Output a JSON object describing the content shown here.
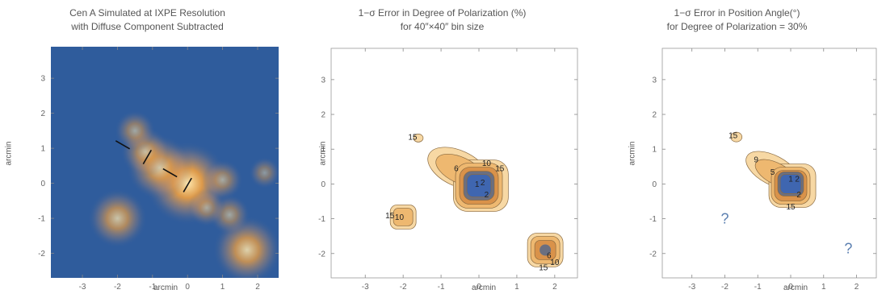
{
  "chart_data": [
    {
      "type": "heatmap",
      "title": "Cen A Simulated at IXPE Resolution",
      "subtitle": "with Diffuse Component Subtracted",
      "xlabel": "arcmin",
      "ylabel": "arcmin",
      "xlim": [
        -3.9,
        2.6
      ],
      "ylim": [
        -2.7,
        3.9
      ],
      "xticks": [
        -3,
        -2,
        -1,
        0,
        1,
        2
      ],
      "yticks": [
        -2,
        -1,
        0,
        1,
        2,
        3
      ],
      "colors": {
        "background": "#2f5c9c",
        "hot": "#ffe9b0",
        "warm": "#f0a040"
      },
      "sources": [
        {
          "x": 0.0,
          "y": 0.0,
          "intensity": 1.0
        },
        {
          "x": -0.8,
          "y": 0.45,
          "intensity": 0.7
        },
        {
          "x": -1.2,
          "y": 0.9,
          "intensity": 0.45
        },
        {
          "x": -1.5,
          "y": 1.5,
          "intensity": 0.3
        },
        {
          "x": -2.0,
          "y": -1.0,
          "intensity": 0.6
        },
        {
          "x": 1.7,
          "y": -1.9,
          "intensity": 0.75
        },
        {
          "x": 1.2,
          "y": -0.9,
          "intensity": 0.3
        },
        {
          "x": 1.0,
          "y": 0.1,
          "intensity": 0.3
        },
        {
          "x": 0.55,
          "y": -0.7,
          "intensity": 0.25
        },
        {
          "x": 2.2,
          "y": 0.3,
          "intensity": 0.15
        }
      ],
      "polarization_vectors": [
        {
          "x": -1.85,
          "y": 1.1,
          "angle_deg": 150
        },
        {
          "x": -1.15,
          "y": 0.75,
          "angle_deg": 60
        },
        {
          "x": -0.5,
          "y": 0.3,
          "angle_deg": 150
        },
        {
          "x": 0.0,
          "y": -0.05,
          "angle_deg": 60
        }
      ]
    },
    {
      "type": "contour",
      "title": "1−σ Error in Degree of Polarization (%)",
      "subtitle": "for 40″×40″ bin size",
      "xlabel": "arcmin",
      "ylabel": "arcmin",
      "xlim": [
        -3.9,
        2.6
      ],
      "ylim": [
        -2.7,
        3.9
      ],
      "xticks": [
        -3,
        -2,
        -1,
        0,
        1,
        2
      ],
      "yticks": [
        -2,
        -1,
        0,
        1,
        2,
        3
      ],
      "contour_levels": [
        1,
        2,
        6,
        10,
        15
      ],
      "labels": [
        {
          "text": "15",
          "x": -1.75,
          "y": 1.35
        },
        {
          "text": "6",
          "x": -0.6,
          "y": 0.45
        },
        {
          "text": "10",
          "x": 0.2,
          "y": 0.6
        },
        {
          "text": "15",
          "x": 0.55,
          "y": 0.45
        },
        {
          "text": "1",
          "x": -0.05,
          "y": 0.0
        },
        {
          "text": "2",
          "x": 0.1,
          "y": 0.05
        },
        {
          "text": "2",
          "x": 0.2,
          "y": -0.3
        },
        {
          "text": "15",
          "x": -2.35,
          "y": -0.9
        },
        {
          "text": "10",
          "x": -2.1,
          "y": -0.95
        },
        {
          "text": "6",
          "x": 1.85,
          "y": -2.05
        },
        {
          "text": "10",
          "x": 2.0,
          "y": -2.25
        },
        {
          "text": "15",
          "x": 1.7,
          "y": -2.4
        }
      ]
    },
    {
      "type": "contour",
      "title": "1−σ Error in Position Angle(°)",
      "subtitle": "for Degree of Polarization = 30%",
      "xlabel": "arcmin",
      "ylabel": "arcmin",
      "xlim": [
        -3.9,
        2.6
      ],
      "ylim": [
        -2.7,
        3.9
      ],
      "xticks": [
        -3,
        -2,
        -1,
        0,
        1,
        2
      ],
      "yticks": [
        -2,
        -1,
        0,
        1,
        2,
        3
      ],
      "contour_levels": [
        1,
        2,
        5,
        9,
        15
      ],
      "labels": [
        {
          "text": "15",
          "x": -1.75,
          "y": 1.4
        },
        {
          "text": "9",
          "x": -1.05,
          "y": 0.7
        },
        {
          "text": "5",
          "x": -0.55,
          "y": 0.35
        },
        {
          "text": "1",
          "x": 0.0,
          "y": 0.15
        },
        {
          "text": "2",
          "x": 0.2,
          "y": 0.15
        },
        {
          "text": "2",
          "x": 0.25,
          "y": -0.3
        },
        {
          "text": "15",
          "x": 0.0,
          "y": -0.65
        }
      ],
      "question_marks": [
        {
          "text": "?",
          "x": -2.0,
          "y": -1.0
        },
        {
          "text": "?",
          "x": 1.75,
          "y": -1.85
        }
      ]
    }
  ]
}
